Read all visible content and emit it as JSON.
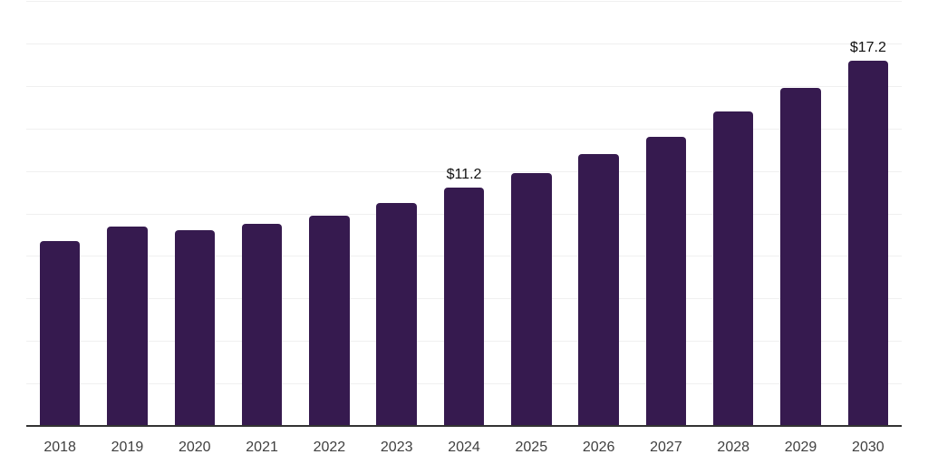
{
  "chart_data": {
    "type": "bar",
    "categories": [
      "2018",
      "2019",
      "2020",
      "2021",
      "2022",
      "2023",
      "2024",
      "2025",
      "2026",
      "2027",
      "2028",
      "2029",
      "2030"
    ],
    "values": [
      8.7,
      9.4,
      9.2,
      9.5,
      9.9,
      10.5,
      11.2,
      11.9,
      12.8,
      13.6,
      14.8,
      15.9,
      17.2
    ],
    "data_labels": [
      {
        "category": "2024",
        "text": "$11.2"
      },
      {
        "category": "2030",
        "text": "$17.2"
      }
    ],
    "title": "",
    "xlabel": "",
    "ylabel": "",
    "ylim": [
      0,
      20
    ],
    "gridline_step": 2,
    "grid": true,
    "legend": "none",
    "value_prefix": "$"
  },
  "colors": {
    "bar": "#361a4f",
    "axis_line": "#333333",
    "gridline": "#f0f0f0",
    "tick_label": "#404040",
    "value_label": "#111111",
    "background": "#ffffff"
  }
}
